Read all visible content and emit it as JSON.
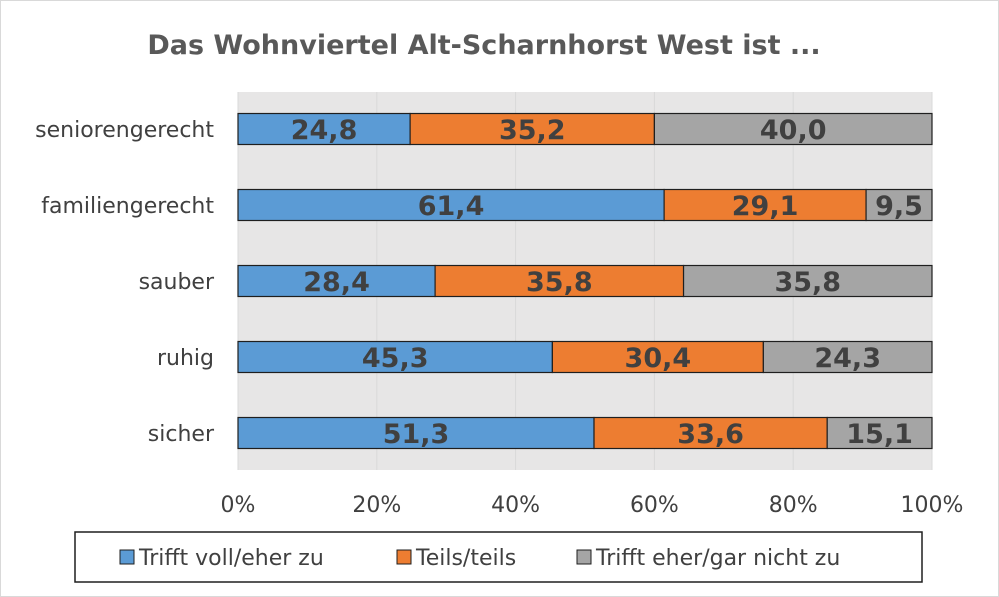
{
  "chart_data": {
    "type": "bar",
    "orientation": "horizontal",
    "stacked": "percent",
    "title": "Das Wohnviertel Alt-Scharnhorst West ist ...",
    "categories": [
      "seniorengerecht",
      "familiengerecht",
      "sauber",
      "ruhig",
      "sicher"
    ],
    "series": [
      {
        "name": "Trifft voll/eher zu",
        "color": "#5b9bd5",
        "values": [
          24.8,
          61.4,
          28.4,
          45.3,
          51.3
        ],
        "labels": [
          "24,8",
          "61,4",
          "28,4",
          "45,3",
          "51,3"
        ]
      },
      {
        "name": "Teils/teils",
        "color": "#ed7d31",
        "values": [
          35.2,
          29.1,
          35.8,
          30.4,
          33.6
        ],
        "labels": [
          "35,2",
          "29,1",
          "35,8",
          "30,4",
          "33,6"
        ]
      },
      {
        "name": "Trifft eher/gar nicht zu",
        "color": "#a5a5a5",
        "values": [
          40.0,
          9.5,
          35.8,
          24.3,
          15.1
        ],
        "labels": [
          "40,0",
          "9,5",
          "35,8",
          "24,3",
          "15,1"
        ]
      }
    ],
    "x_ticks": [
      "0%",
      "20%",
      "40%",
      "60%",
      "80%",
      "100%"
    ],
    "xlim": [
      0,
      100
    ],
    "grid": true,
    "plot_background": "#e7e6e6",
    "legend_position": "bottom"
  }
}
